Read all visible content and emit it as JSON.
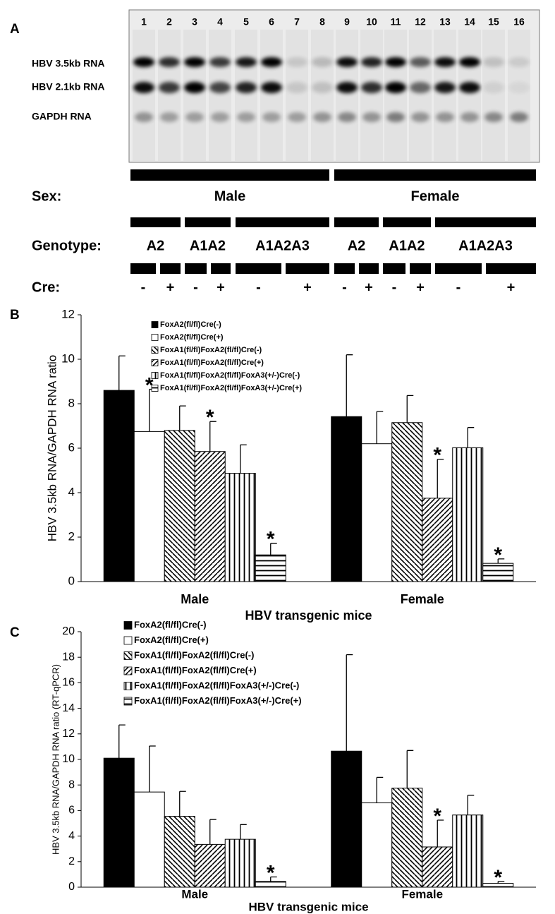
{
  "blot": {
    "panel_label": "A",
    "lanes": [
      1,
      2,
      3,
      4,
      5,
      6,
      7,
      8,
      9,
      10,
      11,
      12,
      13,
      14,
      15,
      16
    ],
    "rows": [
      "HBV 3.5kb RNA",
      "HBV 2.1kb RNA",
      "GAPDH RNA"
    ],
    "sex": {
      "label": "Sex:",
      "groups": [
        "Male",
        "Female"
      ]
    },
    "genotype": {
      "label": "Genotype:",
      "groups": [
        "A2",
        "A1A2",
        "A1A2A3",
        "A2",
        "A1A2",
        "A1A2A3"
      ]
    },
    "cre": {
      "label": "Cre:",
      "groups": [
        "-",
        "+",
        "-",
        "+",
        "-",
        "+",
        "-",
        "+",
        "-",
        "+",
        "-",
        "+"
      ]
    }
  },
  "chart_data": [
    {
      "type": "bar",
      "panel_label": "B",
      "categories": [
        "Male",
        "Female"
      ],
      "xlabel": "HBV transgenic mice",
      "ylabel": "HBV 3.5kb RNA/GAPDH RNA ratio",
      "ylim": [
        0,
        12
      ],
      "yticks": [
        0,
        2,
        4,
        6,
        8,
        10,
        12
      ],
      "series": [
        {
          "name": "FoxA2(fl/fl)Cre(-)",
          "color": "#000000",
          "pattern": "solid",
          "values": [
            8.6,
            7.42
          ],
          "errors": [
            1.55,
            2.78
          ]
        },
        {
          "name": "FoxA2(fl/fl)Cre(+)",
          "color": "#000000",
          "pattern": "none",
          "values": [
            6.75,
            6.2
          ],
          "errors": [
            1.9,
            1.45
          ]
        },
        {
          "name": "FoxA1(fl/fl)FoxA2(fl/fl)Cre(-)",
          "color": "#000000",
          "pattern": "diagonal-down",
          "values": [
            6.8,
            7.15
          ],
          "errors": [
            1.1,
            1.22
          ]
        },
        {
          "name": "FoxA1(fl/fl)FoxA2(fl/fl)Cre(+)",
          "color": "#000000",
          "pattern": "diagonal-up",
          "values": [
            5.85,
            3.75
          ],
          "errors": [
            1.35,
            1.75
          ]
        },
        {
          "name": "FoxA1(fl/fl)FoxA2(fl/fl)FoxA3(+/-)Cre(-)",
          "color": "#000000",
          "pattern": "vertical",
          "values": [
            4.87,
            6.02
          ],
          "errors": [
            1.28,
            0.91
          ]
        },
        {
          "name": "FoxA1(fl/fl)FoxA2(fl/fl)FoxA3(+/-)Cre(+)",
          "color": "#000000",
          "pattern": "horizontal",
          "values": [
            1.2,
            0.82
          ],
          "errors": [
            0.52,
            0.2
          ]
        }
      ],
      "annotations": [
        {
          "text": "*",
          "series": 1,
          "category": 0
        },
        {
          "text": "*",
          "series": 3,
          "category": 0
        },
        {
          "text": "*",
          "series": 5,
          "category": 0
        },
        {
          "text": "*",
          "series": 3,
          "category": 1
        },
        {
          "text": "*",
          "series": 5,
          "category": 1
        }
      ]
    },
    {
      "type": "bar",
      "panel_label": "C",
      "categories": [
        "Male",
        "Female"
      ],
      "xlabel": "HBV transgenic mice",
      "ylabel": "HBV 3.5kb RNA/GAPDH RNA ratio (RT-qPCR)",
      "ylim": [
        0,
        20
      ],
      "yticks": [
        0,
        2,
        4,
        6,
        8,
        10,
        12,
        14,
        16,
        18,
        20
      ],
      "series": [
        {
          "name": "FoxA2(fl/fl)Cre(-)",
          "color": "#000000",
          "pattern": "solid",
          "values": [
            10.1,
            10.65
          ],
          "errors": [
            2.6,
            7.55
          ]
        },
        {
          "name": "FoxA2(fl/fl)Cre(+)",
          "color": "#000000",
          "pattern": "none",
          "values": [
            7.45,
            6.6
          ],
          "errors": [
            3.6,
            2.0
          ]
        },
        {
          "name": "FoxA1(fl/fl)FoxA2(fl/fl)Cre(-)",
          "color": "#000000",
          "pattern": "diagonal-down",
          "values": [
            5.55,
            7.75
          ],
          "errors": [
            1.95,
            2.95
          ]
        },
        {
          "name": "FoxA1(fl/fl)FoxA2(fl/fl)Cre(+)",
          "color": "#000000",
          "pattern": "diagonal-up",
          "values": [
            3.35,
            3.15
          ],
          "errors": [
            1.95,
            2.1
          ]
        },
        {
          "name": "FoxA1(fl/fl)FoxA2(fl/fl)FoxA3(+/-)Cre(-)",
          "color": "#000000",
          "pattern": "vertical",
          "values": [
            3.75,
            5.65
          ],
          "errors": [
            1.15,
            1.55
          ]
        },
        {
          "name": "FoxA1(fl/fl)FoxA2(fl/fl)FoxA3(+/-)Cre(+)",
          "color": "#000000",
          "pattern": "horizontal",
          "values": [
            0.45,
            0.3
          ],
          "errors": [
            0.35,
            0.15
          ]
        }
      ],
      "annotations": [
        {
          "text": "*",
          "series": 5,
          "category": 0
        },
        {
          "text": "*",
          "series": 3,
          "category": 1
        },
        {
          "text": "*",
          "series": 5,
          "category": 1
        }
      ]
    }
  ]
}
